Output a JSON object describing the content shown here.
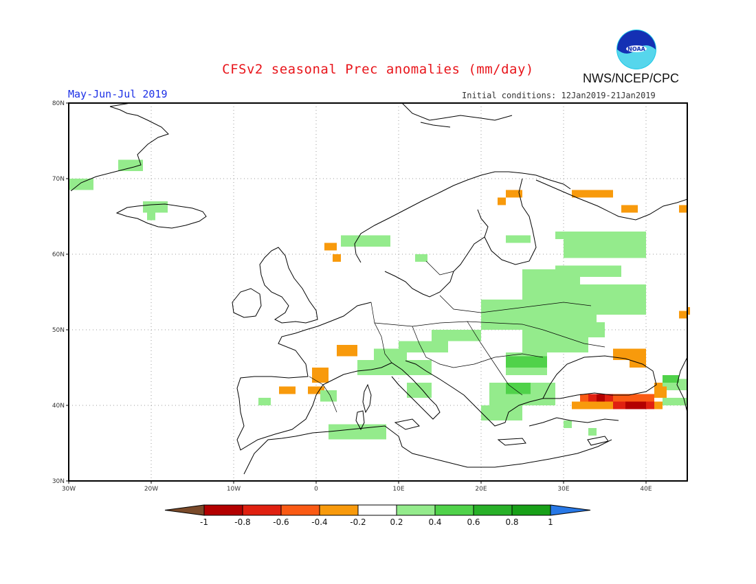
{
  "header": {
    "title": "CFSv2 seasonal Prec anomalies (mm/day)",
    "period": "May-Jun-Jul 2019",
    "initial_conditions": "Initial conditions: 12Jan2019-21Jan2019",
    "agency": "NWS/NCEP/CPC",
    "logo_text": "NOAA"
  },
  "map": {
    "region": "Europe",
    "lon_range": [
      -30,
      45
    ],
    "lat_range": [
      30,
      80
    ],
    "lat_labels": [
      "80N",
      "70N",
      "60N",
      "50N",
      "40N",
      "30N"
    ],
    "lon_labels": [
      "30W",
      "20W",
      "10W",
      "0",
      "10E",
      "20E",
      "30E",
      "40E"
    ]
  },
  "colorbar": {
    "labels": [
      "-1",
      "-0.8",
      "-0.6",
      "-0.4",
      "-0.2",
      "0.2",
      "0.4",
      "0.6",
      "0.8",
      "1"
    ],
    "colors": [
      "#7a4a2a",
      "#b30000",
      "#e02010",
      "#fa5a14",
      "#f89a0c",
      "#ffffff",
      "#94eb8c",
      "#50d24a",
      "#28b028",
      "#18a018",
      "#2878e6"
    ]
  },
  "colors": {
    "title": "#e8141a",
    "period": "#1a2ee6"
  }
}
